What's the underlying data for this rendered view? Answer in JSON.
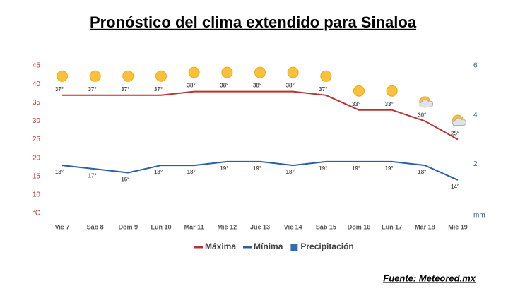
{
  "chart_data": {
    "type": "line",
    "title": "Pronóstico del clima extendido para Sinaloa",
    "source": "Fuente: Meteored.mx",
    "categories": [
      "Vie 7",
      "Sáb 8",
      "Dom 9",
      "Lun 10",
      "Mar 11",
      "Mié 12",
      "Jue 13",
      "Vie 14",
      "Sáb 15",
      "Dom 16",
      "Lun 17",
      "Mar 18",
      "Mié 19"
    ],
    "series": [
      {
        "name": "Máxima",
        "color": "#b83232",
        "values": [
          37,
          37,
          37,
          37,
          38,
          38,
          38,
          38,
          37,
          33,
          33,
          30,
          25
        ],
        "value_labels": [
          "37°",
          "37°",
          "37°",
          "37°",
          "38°",
          "38°",
          "38°",
          "38°",
          "37°",
          "33°",
          "33°",
          "30°",
          "25°"
        ]
      },
      {
        "name": "Mínima",
        "color": "#2a5fa5",
        "values": [
          18,
          17,
          16,
          18,
          18,
          19,
          19,
          18,
          19,
          19,
          19,
          18,
          14
        ],
        "value_labels": [
          "18°",
          "17°",
          "16°",
          "18°",
          "18°",
          "19°",
          "19°",
          "18°",
          "19°",
          "19°",
          "19°",
          "18°",
          "14°"
        ]
      },
      {
        "name": "Precipitación",
        "color": "#2f6db5",
        "axis": "y2",
        "kind": "bar",
        "values": [
          null,
          null,
          null,
          null,
          null,
          null,
          null,
          null,
          null,
          null,
          null,
          null,
          null
        ]
      }
    ],
    "ylim": [
      5,
      45
    ],
    "yticks": [
      {
        "value": 5,
        "label": "°C"
      },
      10,
      15,
      20,
      25,
      30,
      35,
      40,
      45
    ],
    "y2lim": [
      0,
      6
    ],
    "y2ticks": [
      {
        "value": 0,
        "label": "mm"
      },
      2,
      4,
      6
    ],
    "grid": false
  }
}
